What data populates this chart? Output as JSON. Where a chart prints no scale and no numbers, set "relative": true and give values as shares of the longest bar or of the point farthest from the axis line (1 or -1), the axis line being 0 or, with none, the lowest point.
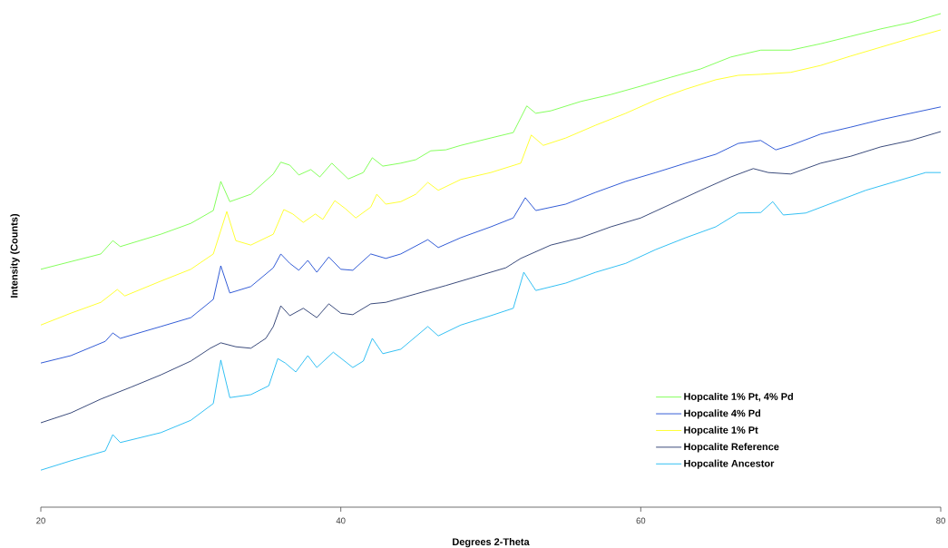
{
  "chart_data": {
    "type": "line",
    "relative": true,
    "xlabel": "Degrees 2-Theta",
    "ylabel": "Intensity (Counts)",
    "xlim": [
      20,
      80
    ],
    "xticks": [
      20,
      40,
      60,
      80
    ],
    "grid": false,
    "legend": "bottom right",
    "marker": "none",
    "line_style": "solid",
    "series": [
      {
        "name": "Hopcalite 1% Pt, 4% Pd",
        "color": "#66ff33",
        "x": [
          20,
          24,
          24.8,
          25.3,
          28,
          30,
          31.5,
          32,
          32.6,
          34,
          35.5,
          36,
          36.6,
          37.2,
          38,
          38.6,
          39.4,
          40.5,
          41.5,
          42.1,
          42.8,
          44,
          45,
          46,
          47,
          48,
          50,
          51.5,
          52.4,
          53,
          54,
          56,
          58,
          60,
          62,
          64,
          66,
          68,
          70,
          72,
          74,
          76,
          78,
          80
        ],
        "values": [
          0.482,
          0.513,
          0.54,
          0.528,
          0.553,
          0.575,
          0.601,
          0.66,
          0.619,
          0.634,
          0.675,
          0.699,
          0.693,
          0.673,
          0.684,
          0.669,
          0.697,
          0.665,
          0.678,
          0.708,
          0.691,
          0.697,
          0.704,
          0.722,
          0.724,
          0.733,
          0.748,
          0.759,
          0.813,
          0.798,
          0.803,
          0.822,
          0.836,
          0.853,
          0.871,
          0.888,
          0.912,
          0.926,
          0.926,
          0.939,
          0.954,
          0.969,
          0.982,
          1.0
        ]
      },
      {
        "name": "Hopcalite 4% Pd",
        "color": "#0033cc",
        "x": [
          20,
          22,
          24.3,
          24.8,
          25.3,
          28,
          30,
          31.5,
          32,
          32.6,
          34,
          35.5,
          36,
          36.6,
          37.2,
          37.8,
          38.4,
          39.2,
          40,
          40.8,
          42,
          43,
          44,
          45.8,
          46.5,
          48,
          50,
          51.5,
          52.3,
          53,
          55,
          57,
          59,
          61,
          63,
          65,
          66.5,
          68,
          69,
          70,
          72,
          74,
          76,
          78,
          80
        ],
        "values": [
          0.292,
          0.307,
          0.336,
          0.353,
          0.342,
          0.366,
          0.384,
          0.421,
          0.489,
          0.434,
          0.447,
          0.485,
          0.513,
          0.494,
          0.48,
          0.5,
          0.476,
          0.507,
          0.482,
          0.48,
          0.513,
          0.504,
          0.513,
          0.542,
          0.526,
          0.546,
          0.568,
          0.586,
          0.627,
          0.601,
          0.614,
          0.638,
          0.66,
          0.678,
          0.697,
          0.715,
          0.737,
          0.743,
          0.724,
          0.733,
          0.756,
          0.77,
          0.785,
          0.798,
          0.811
        ]
      },
      {
        "name": "Hopcalite 1% Pt",
        "color": "#ffff00",
        "x": [
          20,
          22,
          24,
          25.1,
          25.6,
          28,
          30,
          31.5,
          32.4,
          33,
          34,
          35.5,
          36.2,
          36.8,
          37.5,
          38.3,
          38.8,
          39.6,
          40.3,
          41,
          42,
          42.4,
          43,
          44,
          45,
          45.8,
          46.5,
          48,
          50,
          52,
          52.7,
          53.5,
          55,
          57,
          59,
          61,
          63,
          65,
          66.5,
          68,
          70,
          72,
          74,
          76,
          78,
          80
        ],
        "values": [
          0.369,
          0.393,
          0.415,
          0.441,
          0.428,
          0.458,
          0.482,
          0.513,
          0.599,
          0.54,
          0.531,
          0.553,
          0.603,
          0.594,
          0.577,
          0.594,
          0.583,
          0.621,
          0.605,
          0.586,
          0.608,
          0.634,
          0.614,
          0.619,
          0.634,
          0.658,
          0.642,
          0.664,
          0.678,
          0.697,
          0.754,
          0.733,
          0.748,
          0.774,
          0.798,
          0.825,
          0.847,
          0.866,
          0.875,
          0.877,
          0.881,
          0.895,
          0.914,
          0.932,
          0.95,
          0.967
        ]
      },
      {
        "name": "Hopcalite Reference",
        "color": "#0a1e5a",
        "x": [
          20,
          22,
          24,
          26,
          28,
          30,
          31.3,
          32,
          33,
          34,
          35,
          35.5,
          36,
          36.6,
          37.5,
          38.4,
          39.2,
          40,
          40.8,
          42,
          43,
          45,
          47,
          49,
          51,
          52,
          54,
          56,
          58,
          60,
          62,
          64,
          66,
          67.5,
          68.5,
          70,
          72,
          74,
          76,
          78,
          80
        ],
        "values": [
          0.171,
          0.191,
          0.219,
          0.243,
          0.268,
          0.296,
          0.322,
          0.333,
          0.325,
          0.322,
          0.342,
          0.366,
          0.408,
          0.388,
          0.403,
          0.384,
          0.412,
          0.393,
          0.39,
          0.412,
          0.415,
          0.432,
          0.449,
          0.467,
          0.485,
          0.504,
          0.531,
          0.546,
          0.568,
          0.586,
          0.614,
          0.642,
          0.669,
          0.686,
          0.678,
          0.675,
          0.697,
          0.711,
          0.73,
          0.743,
          0.761
        ]
      },
      {
        "name": "Hopcalite Ancestor",
        "color": "#00b0f0",
        "x": [
          20,
          22,
          24.3,
          24.8,
          25.3,
          28,
          30,
          31.5,
          32,
          32.6,
          34,
          35.2,
          35.8,
          36.3,
          37,
          37.8,
          38.4,
          39.5,
          40.8,
          41.5,
          42.1,
          42.8,
          44,
          45.8,
          46.5,
          48,
          50,
          51.5,
          52.2,
          53,
          55,
          57,
          59,
          61,
          63,
          65,
          66.5,
          68,
          68.8,
          69.5,
          71,
          73,
          75,
          77,
          79,
          80
        ],
        "values": [
          0.075,
          0.094,
          0.114,
          0.147,
          0.131,
          0.151,
          0.176,
          0.21,
          0.298,
          0.222,
          0.228,
          0.246,
          0.301,
          0.292,
          0.274,
          0.307,
          0.283,
          0.314,
          0.283,
          0.296,
          0.342,
          0.311,
          0.32,
          0.366,
          0.347,
          0.369,
          0.388,
          0.403,
          0.476,
          0.439,
          0.454,
          0.476,
          0.494,
          0.522,
          0.546,
          0.568,
          0.596,
          0.597,
          0.619,
          0.592,
          0.596,
          0.619,
          0.642,
          0.66,
          0.678,
          0.678
        ]
      }
    ]
  }
}
